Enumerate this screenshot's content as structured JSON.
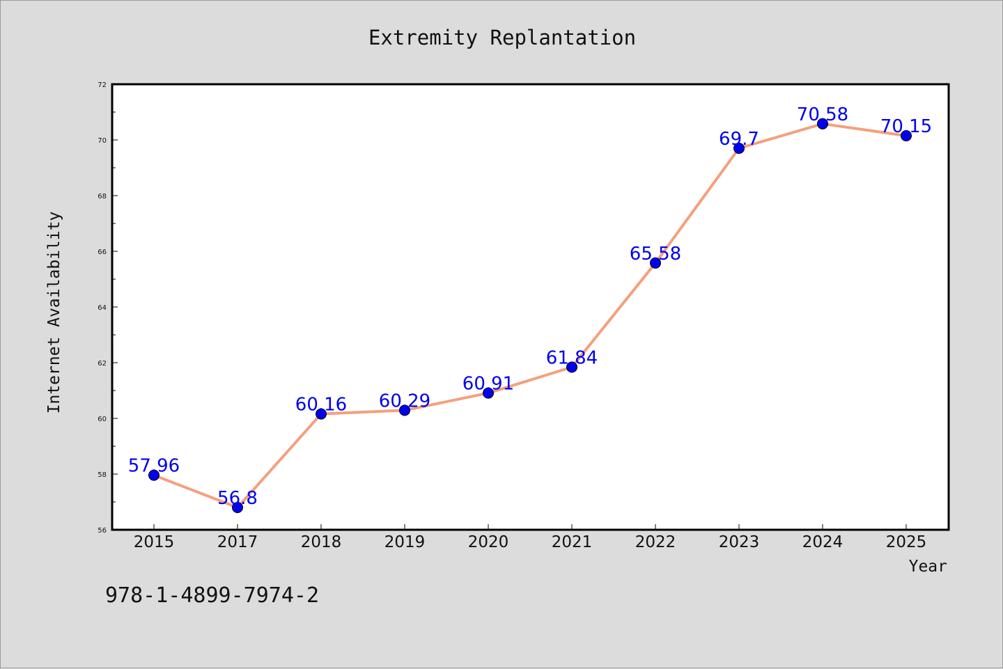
{
  "chart_data": {
    "type": "line",
    "title": "Extremity Replantation",
    "xlabel": "Year",
    "ylabel": "Internet Availability",
    "categories": [
      "2015",
      "2017",
      "2018",
      "2019",
      "2020",
      "2021",
      "2022",
      "2023",
      "2024",
      "2025"
    ],
    "series": [
      {
        "values": [
          57.96,
          56.8,
          60.16,
          60.29,
          60.91,
          61.84,
          65.58,
          69.7,
          70.58,
          70.15
        ],
        "labels": [
          "57.96",
          "56.8",
          "60.16",
          "60.29",
          "60.91",
          "61.84",
          "65.58",
          "69.7",
          "70.58",
          "70.15"
        ]
      }
    ],
    "ylim": [
      56,
      72
    ],
    "yticks": [
      "56",
      "58",
      "60",
      "62",
      "64",
      "66",
      "68",
      "70",
      "72"
    ],
    "grid": false,
    "legend": "none",
    "colors": {
      "line": "#f4a07e",
      "marker": "#0000ee",
      "label": "#0000ee",
      "background": "#dcdcdc",
      "plot_area": "#ffffff"
    }
  },
  "footer": {
    "isbn": "978-1-4899-7974-2"
  }
}
